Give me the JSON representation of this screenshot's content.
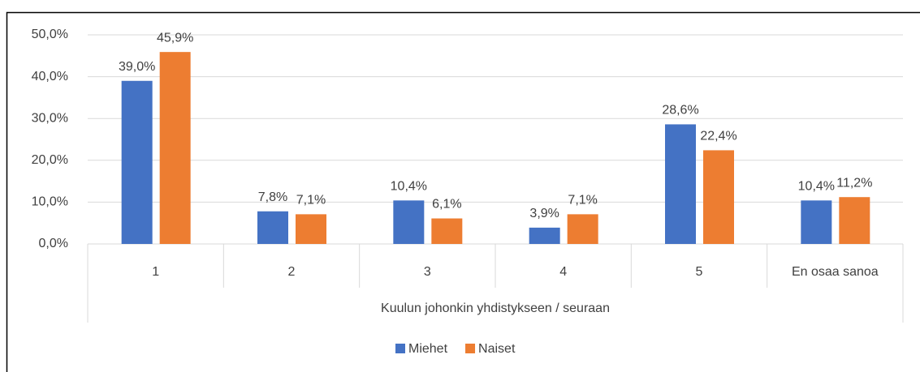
{
  "chart_data": {
    "type": "bar",
    "categories": [
      "1",
      "2",
      "3",
      "4",
      "5",
      "En osaa sanoa"
    ],
    "x_label": "Kuulun johonkin yhdistykseen / seuraan",
    "series": [
      {
        "name": "Miehet",
        "color": "#4472c4",
        "values": [
          39.0,
          7.8,
          10.4,
          3.9,
          28.6,
          10.4
        ],
        "value_labels": [
          "39,0%",
          "7,8%",
          "10,4%",
          "3,9%",
          "28,6%",
          "10,4%"
        ]
      },
      {
        "name": "Naiset",
        "color": "#ed7d31",
        "values": [
          45.9,
          7.1,
          6.1,
          7.1,
          22.4,
          11.2
        ],
        "value_labels": [
          "45,9%",
          "7,1%",
          "6,1%",
          "7,1%",
          "22,4%",
          "11,2%"
        ]
      }
    ],
    "ylim": [
      0,
      50
    ],
    "yticks": [
      {
        "value": 0,
        "label": "0,0%"
      },
      {
        "value": 10,
        "label": "10,0%"
      },
      {
        "value": 20,
        "label": "20,0%"
      },
      {
        "value": 30,
        "label": "30,0%"
      },
      {
        "value": 40,
        "label": "40,0%"
      },
      {
        "value": 50,
        "label": "50,0%"
      }
    ],
    "grid": true,
    "legend": "bottom"
  }
}
